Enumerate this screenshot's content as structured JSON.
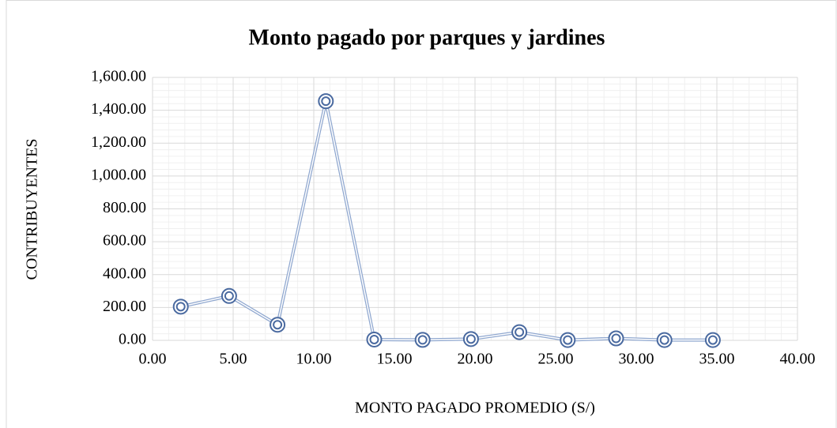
{
  "chart_data": {
    "type": "scatter_line",
    "title": "Monto pagado por parques y jardines",
    "x_label": "MONTO PAGADO PROMEDIO (S/)",
    "y_label": "CONTRIBUYENTES",
    "x": [
      1.75,
      4.75,
      7.75,
      10.75,
      13.75,
      16.75,
      19.75,
      22.75,
      25.75,
      28.75,
      31.75,
      34.75
    ],
    "series": [
      {
        "name": "Contribuyentes",
        "color": "#8fa7cf",
        "marker_color": "#4a6aa0",
        "values": [
          205,
          270,
          95,
          1455,
          5,
          3,
          8,
          50,
          2,
          12,
          2,
          2
        ]
      }
    ],
    "xlim": [
      0,
      40
    ],
    "xticks": [
      {
        "value": 0,
        "label": "0.00"
      },
      {
        "value": 5,
        "label": "5.00"
      },
      {
        "value": 10,
        "label": "10.00"
      },
      {
        "value": 15,
        "label": "15.00"
      },
      {
        "value": 20,
        "label": "20.00"
      },
      {
        "value": 25,
        "label": "25.00"
      },
      {
        "value": 30,
        "label": "30.00"
      },
      {
        "value": 35,
        "label": "35.00"
      },
      {
        "value": 40,
        "label": "40.00"
      }
    ],
    "ylim": [
      0,
      1600
    ],
    "yticks": [
      {
        "value": 0,
        "label": "0.00"
      },
      {
        "value": 200,
        "label": "200.00"
      },
      {
        "value": 400,
        "label": "400.00"
      },
      {
        "value": 600,
        "label": "600.00"
      },
      {
        "value": 800,
        "label": "800.00"
      },
      {
        "value": 1000,
        "label": "1,000.00"
      },
      {
        "value": 1200,
        "label": "1,200.00"
      },
      {
        "value": 1400,
        "label": "1,400.00"
      },
      {
        "value": 1600,
        "label": "1,600.00"
      }
    ],
    "grid": true,
    "minor_grid": true
  }
}
